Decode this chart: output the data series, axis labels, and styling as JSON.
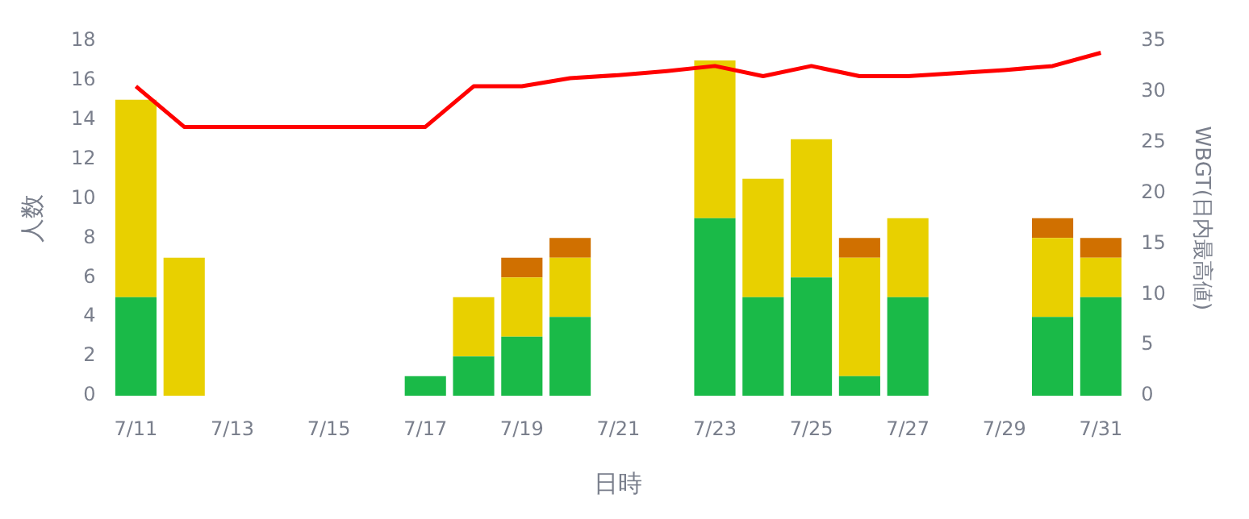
{
  "chart_data": {
    "type": "bar",
    "stacked": true,
    "xlabel": "日時",
    "ylabel": "人数",
    "y2label": "WBGT(日内最高値)",
    "categories": [
      "7/11",
      null,
      "7/13",
      null,
      "7/15",
      null,
      "7/17",
      null,
      "7/19",
      null,
      "7/21",
      null,
      "7/23",
      null,
      "7/25",
      null,
      "7/27",
      null,
      "7/29",
      null,
      "7/31"
    ],
    "series": [
      {
        "color": "#1aba48",
        "values": [
          5,
          0,
          null,
          null,
          null,
          null,
          1,
          2,
          3,
          4,
          null,
          null,
          9,
          5,
          6,
          1,
          5,
          null,
          null,
          4,
          5
        ]
      },
      {
        "color": "#e8d000",
        "values": [
          10,
          7,
          null,
          null,
          null,
          null,
          0,
          3,
          3,
          3,
          null,
          null,
          8,
          6,
          7,
          6,
          4,
          null,
          null,
          4,
          2
        ]
      },
      {
        "color": "#d07000",
        "values": [
          0,
          0,
          null,
          null,
          null,
          null,
          0,
          0,
          1,
          1,
          null,
          null,
          0,
          0,
          0,
          1,
          0,
          null,
          null,
          1,
          1
        ]
      },
      {
        "type": "line",
        "axis": "y2",
        "color": "#ff0000",
        "values": [
          30.5,
          26.5,
          26.5,
          26.5,
          26.5,
          26.5,
          26.5,
          30.5,
          30.5,
          31.3,
          31.6,
          32,
          32.5,
          31.5,
          32.5,
          31.5,
          31.5,
          31.8,
          32.1,
          32.5,
          33.8
        ]
      }
    ],
    "ylim": [
      0,
      18
    ],
    "yticks": [
      0,
      2,
      4,
      6,
      8,
      10,
      12,
      14,
      16,
      18
    ],
    "y2lim": [
      0,
      35
    ],
    "y2ticks": [
      0,
      5,
      10,
      15,
      20,
      25,
      30,
      35
    ],
    "grid": false,
    "legend": false,
    "marker": "none",
    "line_style": "solid"
  }
}
